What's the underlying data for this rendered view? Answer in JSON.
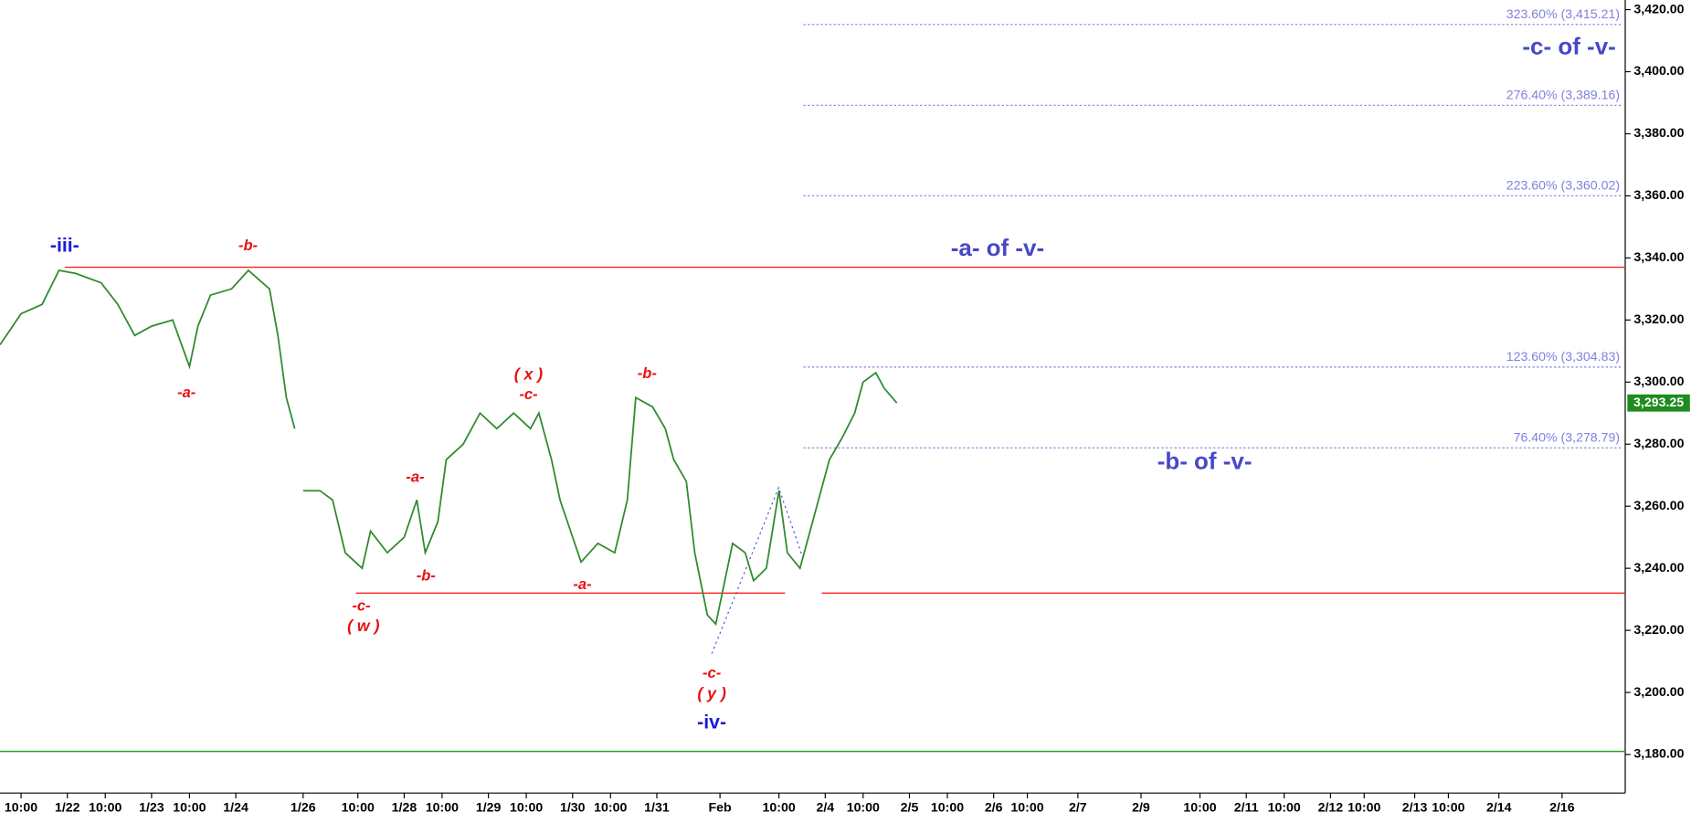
{
  "chart_data": {
    "type": "line",
    "xlim": [
      0,
      38.6
    ],
    "ylim": [
      3167.6,
      3423.1
    ],
    "xticks": [
      {
        "value": 0.5,
        "label": "10:00"
      },
      {
        "value": 1.6,
        "label": "1/22"
      },
      {
        "value": 2.5,
        "label": "10:00"
      },
      {
        "value": 3.6,
        "label": "1/23"
      },
      {
        "value": 4.5,
        "label": "10:00"
      },
      {
        "value": 5.6,
        "label": "1/24"
      },
      {
        "value": 7.2,
        "label": "1/26"
      },
      {
        "value": 8.5,
        "label": "10:00"
      },
      {
        "value": 9.6,
        "label": "1/28"
      },
      {
        "value": 10.5,
        "label": "10:00"
      },
      {
        "value": 11.6,
        "label": "1/29"
      },
      {
        "value": 12.5,
        "label": "10:00"
      },
      {
        "value": 13.6,
        "label": "1/30"
      },
      {
        "value": 14.5,
        "label": "10:00"
      },
      {
        "value": 15.6,
        "label": "1/31"
      },
      {
        "value": 17.1,
        "label": "Feb"
      },
      {
        "value": 18.5,
        "label": "10:00"
      },
      {
        "value": 19.6,
        "label": "2/4"
      },
      {
        "value": 20.5,
        "label": "10:00"
      },
      {
        "value": 21.6,
        "label": "2/5"
      },
      {
        "value": 22.5,
        "label": "10:00"
      },
      {
        "value": 23.6,
        "label": "2/6"
      },
      {
        "value": 24.4,
        "label": "10:00"
      },
      {
        "value": 25.6,
        "label": "2/7"
      },
      {
        "value": 27.1,
        "label": "2/9"
      },
      {
        "value": 28.5,
        "label": "10:00"
      },
      {
        "value": 29.6,
        "label": "2/11"
      },
      {
        "value": 30.5,
        "label": "10:00"
      },
      {
        "value": 31.6,
        "label": "2/12"
      },
      {
        "value": 32.4,
        "label": "10:00"
      },
      {
        "value": 33.6,
        "label": "2/13"
      },
      {
        "value": 34.4,
        "label": "10:00"
      },
      {
        "value": 35.6,
        "label": "2/14"
      },
      {
        "value": 37.1,
        "label": "2/16"
      }
    ],
    "yticks": [
      {
        "value": 3180,
        "label": "3,180.00"
      },
      {
        "value": 3200,
        "label": "3,200.00"
      },
      {
        "value": 3220,
        "label": "3,220.00"
      },
      {
        "value": 3240,
        "label": "3,240.00"
      },
      {
        "value": 3260,
        "label": "3,260.00"
      },
      {
        "value": 3280,
        "label": "3,280.00"
      },
      {
        "value": 3300,
        "label": "3,300.00"
      },
      {
        "value": 3320,
        "label": "3,320.00"
      },
      {
        "value": 3340,
        "label": "3,340.00"
      },
      {
        "value": 3360,
        "label": "3,360.00"
      },
      {
        "value": 3380,
        "label": "3,380.00"
      },
      {
        "value": 3400,
        "label": "3,400.00"
      },
      {
        "value": 3420,
        "label": "3,420.00"
      }
    ],
    "series": [
      {
        "color": "#2e8b2e",
        "x": [
          0.0,
          0.5,
          1.0,
          1.4,
          1.8,
          2.4,
          2.8,
          3.2,
          3.6,
          4.1,
          4.5,
          4.7,
          5.0,
          5.5,
          5.9,
          6.4,
          6.6,
          6.8,
          7.0,
          7.1,
          7.2,
          7.6,
          7.9,
          8.2,
          8.6,
          8.8,
          9.2,
          9.6,
          9.9,
          10.1,
          10.4,
          10.6,
          11.0,
          11.4,
          11.8,
          12.2,
          12.6,
          12.8,
          13.1,
          13.3,
          13.6,
          13.8,
          14.2,
          14.6,
          14.9,
          15.1,
          15.5,
          15.8,
          16.0,
          16.3,
          16.5,
          16.8,
          17.0,
          17.2,
          17.4,
          17.7,
          17.9,
          18.2,
          18.5,
          18.7,
          19.0,
          19.2,
          19.5,
          19.7,
          20.0,
          20.3,
          20.5,
          20.8,
          21.0,
          21.3
        ],
        "values": [
          3312,
          3322,
          3325,
          3336,
          3335,
          3332,
          3325,
          3315,
          3318,
          3320,
          3305,
          3318,
          3328,
          3330,
          3336,
          3330,
          3315,
          3295,
          3285,
          null,
          3265,
          3265,
          3262,
          3245,
          3240,
          3252,
          3245,
          3250,
          3262,
          3245,
          3255,
          3275,
          3280,
          3290,
          3285,
          3290,
          3285,
          3290,
          3275,
          3262,
          3250,
          3242,
          3248,
          3245,
          3262,
          3295,
          3292,
          3285,
          3275,
          3268,
          3245,
          3225,
          3222,
          3235,
          3248,
          3245,
          3236,
          3240,
          3265,
          3245,
          3240,
          3250,
          3265,
          3275,
          3282,
          3290,
          3300,
          3303,
          3298,
          3293.25
        ]
      }
    ],
    "current_price": {
      "value": 3293.25,
      "label": "3,293.25",
      "color": "#1e8c1e"
    },
    "levels": [
      {
        "value": 3337,
        "color": "#ff2020"
      },
      {
        "value": 3232,
        "color": "#ff2020"
      },
      {
        "value": 3181,
        "color": "#20a020"
      }
    ],
    "fib_levels": [
      {
        "value": 3415.21,
        "label": "323.60% (3,415.21)"
      },
      {
        "value": 3389.16,
        "label": "276.40% (3,389.16)"
      },
      {
        "value": 3360.02,
        "label": "223.60% (3,360.02)"
      },
      {
        "value": 3304.83,
        "label": "123.60% (3,304.83)"
      },
      {
        "value": 3278.79,
        "label": "76.40% (3,278.79)"
      }
    ],
    "fib_color": "#8080e0",
    "annotations": [
      {
        "text": "-iii-",
        "color": "#1a1adc"
      },
      {
        "text": "-b-",
        "color": "#e81010"
      },
      {
        "text": "-a-",
        "color": "#e81010"
      },
      {
        "text": "( x )",
        "color": "#e81010"
      },
      {
        "text": "-c-",
        "color": "#e81010"
      },
      {
        "text": "-b-",
        "color": "#e81010"
      },
      {
        "text": "-a-",
        "color": "#e81010"
      },
      {
        "text": "-b-",
        "color": "#e81010"
      },
      {
        "text": "-c-",
        "color": "#e81010"
      },
      {
        "text": "( w )",
        "color": "#e81010"
      },
      {
        "text": "-a-",
        "color": "#e81010"
      },
      {
        "text": "-c-",
        "color": "#e81010"
      },
      {
        "text": "( y )",
        "color": "#e81010"
      },
      {
        "text": "-iv-",
        "color": "#1a1adc"
      },
      {
        "text": "-a- of -v-",
        "color": "#4848c8"
      },
      {
        "text": "-b- of -v-",
        "color": "#4848c8"
      },
      {
        "text": "-c- of -v-",
        "color": "#4848c8"
      }
    ]
  }
}
